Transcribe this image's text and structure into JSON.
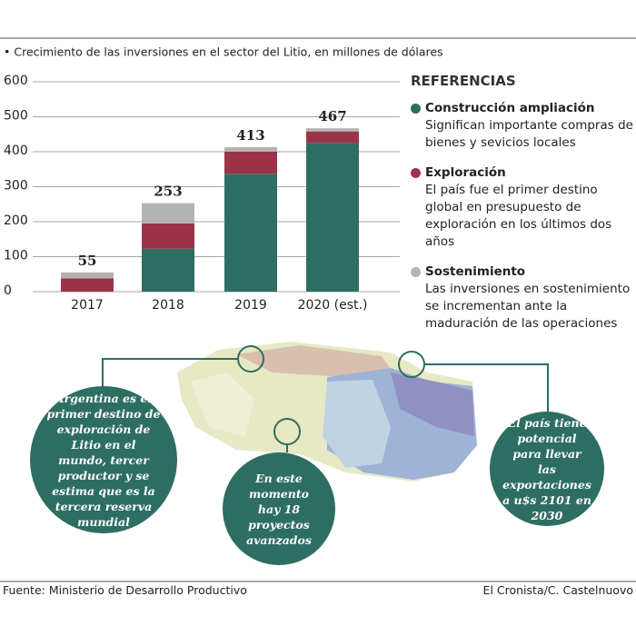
{
  "chart_data": {
    "type": "stacked_bar",
    "subtitle": "• Crecimiento de las inversiones en el sector del Litio, en millones de dólares",
    "categories": [
      "2017",
      "2018",
      "2019",
      "2020 (est.)"
    ],
    "series": [
      {
        "name": "Construcción ampliación",
        "color": "#2e6e62",
        "description": "Significan importante compras de bienes y sevicios locales",
        "values": [
          0,
          123,
          337,
          425
        ]
      },
      {
        "name": "Exploración",
        "color": "#9b3449",
        "description": "El país fue el primer destino global en presupuesto de exploración en los últimos dos años",
        "values": [
          38,
          72,
          63,
          33
        ]
      },
      {
        "name": "Sostenimiento",
        "color": "#b3b3b3",
        "description": "Las inversiones en sostenimiento se incrementan ante la maduración de las operaciones",
        "values": [
          17,
          58,
          13,
          9
        ]
      }
    ],
    "totals": [
      55,
      253,
      413,
      467
    ],
    "legend_title": "REFERENCIAS",
    "ylim": [
      0,
      600
    ],
    "yticks": [
      0,
      100,
      200,
      300,
      400,
      500,
      600
    ],
    "grid": true
  },
  "callouts": [
    "Argentina es el primer destino de exploración de Litio en el mundo, tercer productor y se estima que es la tercera reserva mundial",
    "En este momento hay 18 proyectos avanzados",
    "El país tiene potencial para llevar las exportaciones a u$s 2101 en 2030"
  ],
  "footer": {
    "source": "Fuente: Ministerio de Desarrollo Productivo",
    "credit": "El Cronista/C. Castelnuovo"
  }
}
